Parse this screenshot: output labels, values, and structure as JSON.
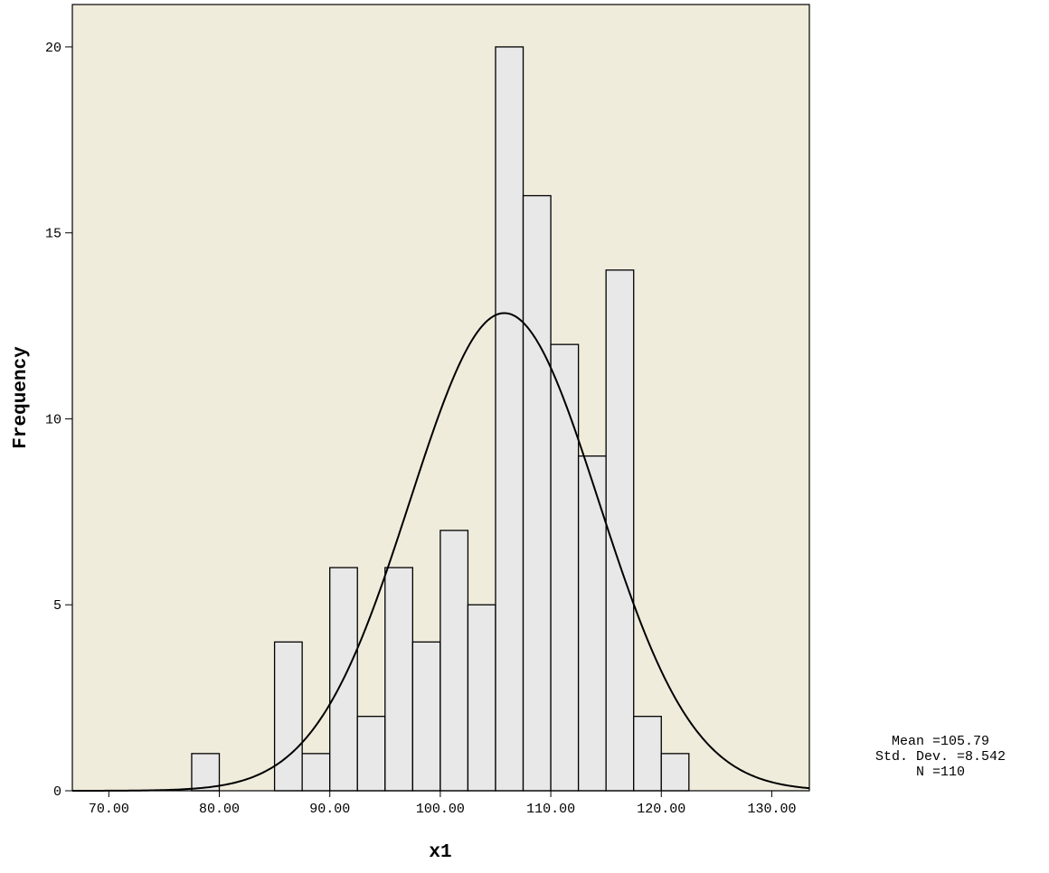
{
  "chart_data": {
    "type": "histogram",
    "xlabel": "x1",
    "ylabel": "Frequency",
    "bins": [
      77.5,
      80,
      82.5,
      85,
      87.5,
      90,
      92.5,
      95,
      97.5,
      100,
      102.5,
      105,
      107.5,
      110,
      112.5,
      115,
      117.5,
      120,
      122.5
    ],
    "values": [
      1,
      0,
      0,
      4,
      1,
      6,
      2,
      6,
      4,
      7,
      5,
      20,
      16,
      12,
      9,
      14,
      2,
      1
    ],
    "color": "#e8e8e8",
    "background": "#f0ecdc",
    "xlim": [
      66.7,
      133.4
    ],
    "ylim": [
      0,
      21.14
    ],
    "xticks": [
      {
        "value": 70,
        "label": "70.00"
      },
      {
        "value": 80,
        "label": "80.00"
      },
      {
        "value": 90,
        "label": "90.00"
      },
      {
        "value": 100,
        "label": "100.00"
      },
      {
        "value": 110,
        "label": "110.00"
      },
      {
        "value": 120,
        "label": "120.00"
      },
      {
        "value": 130,
        "label": "130.00"
      }
    ],
    "yticks": [
      0,
      5,
      10,
      15,
      20
    ],
    "normal_curve": {
      "mean": {
        "value": 105.79,
        "label": "Mean =105.79"
      },
      "sd": {
        "value": 8.542,
        "label": "Std. Dev. =8.542"
      },
      "n": {
        "value": 110,
        "label": "N =110"
      }
    }
  }
}
